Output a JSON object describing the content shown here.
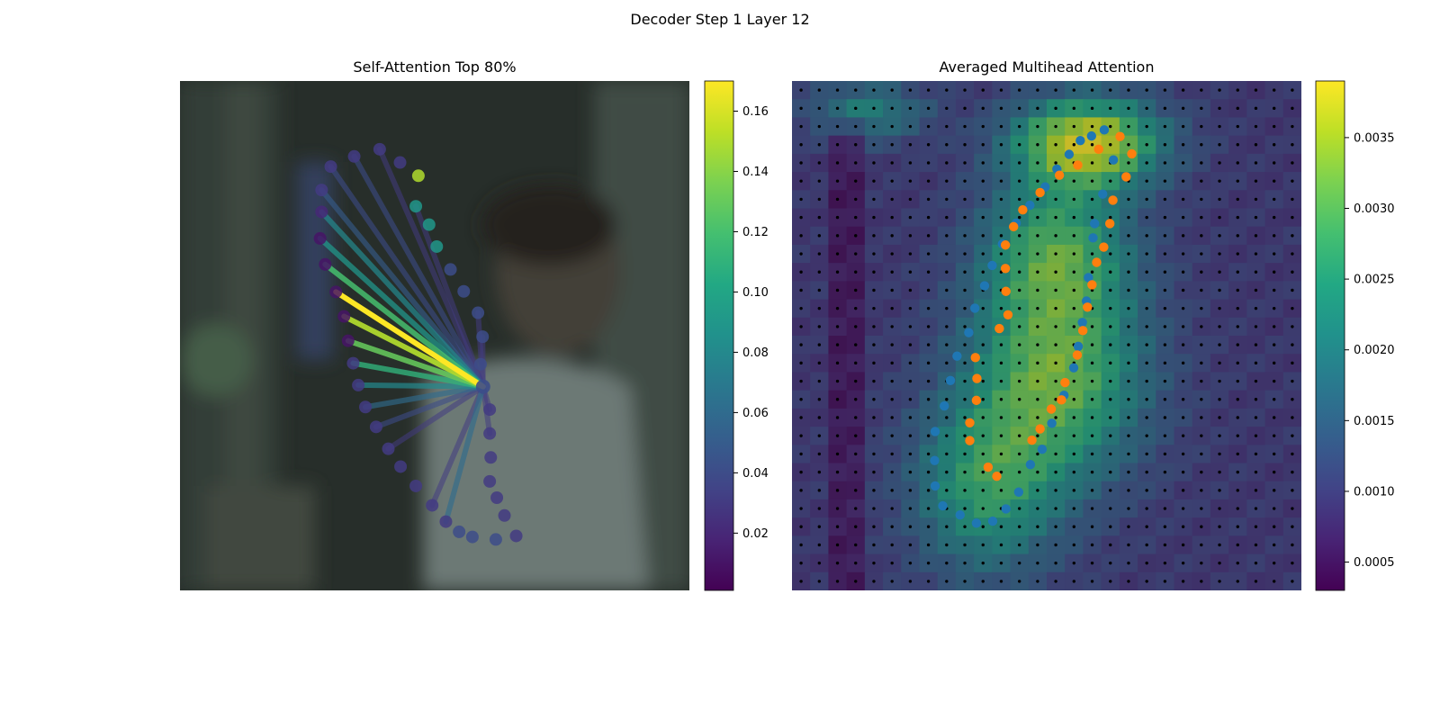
{
  "figure": {
    "title": "Decoder Step 1 Layer 12"
  },
  "chart_data": [
    {
      "type": "scatter",
      "title": "Self-Attention Top 80%",
      "xlim": [
        0,
        1
      ],
      "ylim": [
        0,
        1
      ],
      "axes_visible": false,
      "background": "blurred photo of a person in a white shirt",
      "colormap": "viridis",
      "colorbar": {
        "range": [
          0.001,
          0.17
        ],
        "ticks": [
          0.02,
          0.04,
          0.06,
          0.08,
          0.1,
          0.12,
          0.14,
          0.16
        ],
        "tick_labels": [
          "0.02",
          "0.04",
          "0.06",
          "0.08",
          "0.10",
          "0.12",
          "0.14",
          "0.16"
        ]
      },
      "query_point": {
        "x": 0.595,
        "y": 0.6
      },
      "points": [
        {
          "x": 0.62,
          "y": 0.9,
          "v": 0.04
        },
        {
          "x": 0.574,
          "y": 0.895,
          "v": 0.04
        },
        {
          "x": 0.548,
          "y": 0.885,
          "v": 0.04
        },
        {
          "x": 0.522,
          "y": 0.865,
          "v": 0.03
        },
        {
          "x": 0.495,
          "y": 0.833,
          "v": 0.03
        },
        {
          "x": 0.463,
          "y": 0.795,
          "v": 0.03
        },
        {
          "x": 0.433,
          "y": 0.757,
          "v": 0.03
        },
        {
          "x": 0.409,
          "y": 0.722,
          "v": 0.03
        },
        {
          "x": 0.385,
          "y": 0.679,
          "v": 0.03
        },
        {
          "x": 0.364,
          "y": 0.64,
          "v": 0.03
        },
        {
          "x": 0.35,
          "y": 0.597,
          "v": 0.03
        },
        {
          "x": 0.34,
          "y": 0.554,
          "v": 0.03
        },
        {
          "x": 0.33,
          "y": 0.51,
          "v": 0.01
        },
        {
          "x": 0.322,
          "y": 0.462,
          "v": 0.01
        },
        {
          "x": 0.306,
          "y": 0.414,
          "v": 0.01
        },
        {
          "x": 0.285,
          "y": 0.36,
          "v": 0.01
        },
        {
          "x": 0.275,
          "y": 0.309,
          "v": 0.01
        },
        {
          "x": 0.278,
          "y": 0.257,
          "v": 0.02
        },
        {
          "x": 0.278,
          "y": 0.214,
          "v": 0.03
        },
        {
          "x": 0.296,
          "y": 0.168,
          "v": 0.03
        },
        {
          "x": 0.342,
          "y": 0.148,
          "v": 0.03
        },
        {
          "x": 0.392,
          "y": 0.134,
          "v": 0.03
        },
        {
          "x": 0.432,
          "y": 0.16,
          "v": 0.03
        },
        {
          "x": 0.468,
          "y": 0.186,
          "v": 0.15
        },
        {
          "x": 0.463,
          "y": 0.246,
          "v": 0.09
        },
        {
          "x": 0.489,
          "y": 0.282,
          "v": 0.09
        },
        {
          "x": 0.504,
          "y": 0.325,
          "v": 0.09
        },
        {
          "x": 0.531,
          "y": 0.37,
          "v": 0.04
        },
        {
          "x": 0.557,
          "y": 0.413,
          "v": 0.04
        },
        {
          "x": 0.585,
          "y": 0.455,
          "v": 0.04
        },
        {
          "x": 0.594,
          "y": 0.502,
          "v": 0.04
        },
        {
          "x": 0.59,
          "y": 0.556,
          "v": 0.04
        },
        {
          "x": 0.608,
          "y": 0.645,
          "v": 0.03
        },
        {
          "x": 0.608,
          "y": 0.692,
          "v": 0.03
        },
        {
          "x": 0.61,
          "y": 0.739,
          "v": 0.03
        },
        {
          "x": 0.608,
          "y": 0.786,
          "v": 0.03
        },
        {
          "x": 0.622,
          "y": 0.818,
          "v": 0.03
        },
        {
          "x": 0.637,
          "y": 0.853,
          "v": 0.03
        },
        {
          "x": 0.66,
          "y": 0.893,
          "v": 0.03
        }
      ],
      "edges": [
        {
          "to": 14,
          "v": 0.17
        },
        {
          "to": 13,
          "v": 0.15
        },
        {
          "to": 12,
          "v": 0.13
        },
        {
          "to": 15,
          "v": 0.12
        },
        {
          "to": 11,
          "v": 0.11
        },
        {
          "to": 16,
          "v": 0.09
        },
        {
          "to": 17,
          "v": 0.08
        },
        {
          "to": 10,
          "v": 0.08
        },
        {
          "to": 9,
          "v": 0.06
        },
        {
          "to": 3,
          "v": 0.06
        },
        {
          "to": 18,
          "v": 0.05
        },
        {
          "to": 8,
          "v": 0.04
        },
        {
          "to": 19,
          "v": 0.04
        },
        {
          "to": 20,
          "v": 0.04
        },
        {
          "to": 7,
          "v": 0.03
        },
        {
          "to": 4,
          "v": 0.03
        },
        {
          "to": 24,
          "v": 0.03
        },
        {
          "to": 21,
          "v": 0.03
        },
        {
          "to": 32,
          "v": 0.03
        },
        {
          "to": 33,
          "v": 0.03
        },
        {
          "to": 29,
          "v": 0.03
        },
        {
          "to": 30,
          "v": 0.03
        }
      ]
    },
    {
      "type": "heatmap",
      "title": "Averaged Multihead Attention",
      "grid": [
        28,
        28
      ],
      "xlim": [
        0,
        1
      ],
      "ylim": [
        0,
        1
      ],
      "axes_visible": false,
      "colormap": "viridis",
      "colorbar": {
        "range": [
          0.0003,
          0.0039
        ],
        "ticks": [
          0.0005,
          0.001,
          0.0015,
          0.002,
          0.0025,
          0.003,
          0.0035
        ],
        "tick_labels": [
          "0.0005",
          "0.0010",
          "0.0015",
          "0.0020",
          "0.0025",
          "0.0030",
          "0.0035"
        ]
      },
      "hotspots": [
        {
          "x": 0.58,
          "y": 0.12,
          "amp": 0.003,
          "sx": 0.1,
          "sy": 0.06
        },
        {
          "x": 0.52,
          "y": 0.33,
          "amp": 0.0018,
          "sx": 0.1,
          "sy": 0.1
        },
        {
          "x": 0.52,
          "y": 0.58,
          "amp": 0.0022,
          "sx": 0.12,
          "sy": 0.14
        },
        {
          "x": 0.38,
          "y": 0.8,
          "amp": 0.0016,
          "sx": 0.1,
          "sy": 0.12
        },
        {
          "x": 0.15,
          "y": 0.06,
          "amp": 0.0012,
          "sx": 0.08,
          "sy": 0.04
        }
      ],
      "base_value": 0.0009,
      "series": [
        {
          "name": "",
          "color": "#1f77b4",
          "points": [
            [
              0.613,
              0.096
            ],
            [
              0.588,
              0.108
            ],
            [
              0.566,
              0.117
            ],
            [
              0.544,
              0.144
            ],
            [
              0.52,
              0.173
            ],
            [
              0.497,
              0.208
            ],
            [
              0.467,
              0.244
            ],
            [
              0.44,
              0.279
            ],
            [
              0.413,
              0.32
            ],
            [
              0.393,
              0.362
            ],
            [
              0.378,
              0.402
            ],
            [
              0.359,
              0.446
            ],
            [
              0.347,
              0.494
            ],
            [
              0.324,
              0.54
            ],
            [
              0.311,
              0.588
            ],
            [
              0.299,
              0.638
            ],
            [
              0.281,
              0.688
            ],
            [
              0.28,
              0.745
            ],
            [
              0.281,
              0.795
            ],
            [
              0.296,
              0.834
            ],
            [
              0.33,
              0.852
            ],
            [
              0.362,
              0.868
            ],
            [
              0.394,
              0.864
            ],
            [
              0.42,
              0.84
            ],
            [
              0.445,
              0.807
            ],
            [
              0.468,
              0.753
            ],
            [
              0.491,
              0.723
            ],
            [
              0.51,
              0.672
            ],
            [
              0.534,
              0.617
            ],
            [
              0.553,
              0.563
            ],
            [
              0.562,
              0.521
            ],
            [
              0.57,
              0.474
            ],
            [
              0.578,
              0.432
            ],
            [
              0.582,
              0.386
            ],
            [
              0.591,
              0.308
            ],
            [
              0.594,
              0.28
            ],
            [
              0.61,
              0.222
            ],
            [
              0.631,
              0.155
            ]
          ]
        },
        {
          "name": "",
          "color": "#ff7f0e",
          "points": [
            [
              0.644,
              0.109
            ],
            [
              0.602,
              0.134
            ],
            [
              0.561,
              0.165
            ],
            [
              0.525,
              0.185
            ],
            [
              0.487,
              0.219
            ],
            [
              0.453,
              0.253
            ],
            [
              0.435,
              0.286
            ],
            [
              0.419,
              0.322
            ],
            [
              0.419,
              0.368
            ],
            [
              0.42,
              0.413
            ],
            [
              0.424,
              0.459
            ],
            [
              0.407,
              0.486
            ],
            [
              0.36,
              0.543
            ],
            [
              0.363,
              0.584
            ],
            [
              0.362,
              0.627
            ],
            [
              0.349,
              0.671
            ],
            [
              0.349,
              0.706
            ],
            [
              0.385,
              0.758
            ],
            [
              0.402,
              0.776
            ],
            [
              0.471,
              0.705
            ],
            [
              0.487,
              0.683
            ],
            [
              0.509,
              0.644
            ],
            [
              0.529,
              0.626
            ],
            [
              0.536,
              0.592
            ],
            [
              0.56,
              0.538
            ],
            [
              0.571,
              0.49
            ],
            [
              0.58,
              0.444
            ],
            [
              0.589,
              0.4
            ],
            [
              0.598,
              0.356
            ],
            [
              0.612,
              0.326
            ],
            [
              0.624,
              0.28
            ],
            [
              0.63,
              0.234
            ],
            [
              0.656,
              0.188
            ],
            [
              0.667,
              0.143
            ]
          ]
        }
      ]
    }
  ]
}
